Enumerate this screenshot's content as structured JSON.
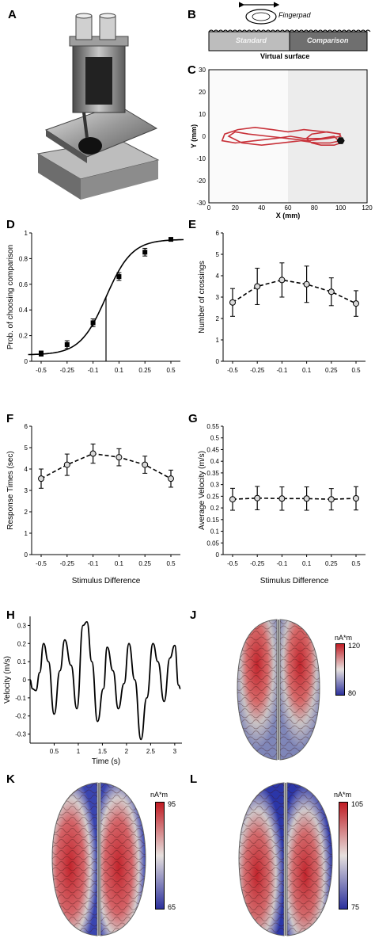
{
  "panels": {
    "A": {
      "label": "A"
    },
    "B": {
      "label": "B",
      "fingerpad": "Fingerpad",
      "standard": "Standard",
      "comparison": "Comparison",
      "surface": "Virtual surface"
    },
    "C": {
      "label": "C"
    },
    "D": {
      "label": "D"
    },
    "E": {
      "label": "E"
    },
    "F": {
      "label": "F"
    },
    "G": {
      "label": "G"
    },
    "H": {
      "label": "H"
    },
    "J": {
      "label": "J",
      "unit": "nA*m",
      "max": "120",
      "min": "80"
    },
    "K": {
      "label": "K",
      "unit": "nA*m",
      "max": "95",
      "min": "65"
    },
    "L": {
      "label": "L",
      "unit": "nA*m",
      "max": "105",
      "min": "75"
    }
  },
  "chart_data": [
    {
      "panel": "C",
      "type": "line",
      "xlabel": "X (mm)",
      "ylabel": "Y (mm)",
      "xlim": [
        0,
        120
      ],
      "ylim": [
        -30,
        30
      ],
      "xticks": [
        "0",
        "20",
        "40",
        "60",
        "80",
        "100",
        "120"
      ],
      "yticks": [
        "30",
        "20",
        "10",
        "0",
        "-10",
        "-20",
        "-30"
      ],
      "series": [
        {
          "color": "#c8323a",
          "x": [
            100,
            88,
            72,
            60,
            48,
            35,
            22,
            12,
            10,
            20,
            35,
            50,
            62,
            72,
            85,
            95,
            100,
            95,
            85,
            78,
            74,
            78,
            90,
            99,
            100,
            90,
            75,
            60,
            45,
            30,
            20,
            15,
            25,
            40,
            55,
            70,
            82,
            92,
            100
          ],
          "y": [
            1,
            2,
            3,
            2,
            3,
            4,
            3,
            1,
            -2,
            -3,
            -2,
            -1,
            0,
            -1,
            -1,
            0,
            -3,
            -4,
            -4,
            -3,
            -1,
            1,
            2,
            1,
            0,
            -1,
            -2,
            -1,
            0,
            1,
            2,
            0,
            -3,
            -4,
            -3,
            -2,
            -3,
            -3,
            -2
          ]
        }
      ]
    },
    {
      "panel": "D",
      "type": "line",
      "xlabel": "",
      "ylabel": "Prob. of choosing comparison",
      "ylim": [
        0,
        1
      ],
      "xlim": [
        -0.6,
        0.6
      ],
      "xticks": [
        "-0.5",
        "-0.25",
        "-0.1",
        "0.1",
        "0.25",
        "0.5"
      ],
      "yticks": [
        "0",
        "0.2",
        "0.4",
        "0.6",
        "0.8",
        "1"
      ],
      "categories": [
        "-0.5",
        "-0.25",
        "-0.1",
        "0.1",
        "0.25",
        "0.5"
      ],
      "values": [
        0.06,
        0.13,
        0.3,
        0.66,
        0.85,
        0.95
      ],
      "errors": [
        0.02,
        0.03,
        0.03,
        0.03,
        0.03,
        0.01
      ],
      "pse_line": 0.0
    },
    {
      "panel": "E",
      "type": "line",
      "xlabel": "",
      "ylabel": "Number of crossings",
      "ylim": [
        0,
        6
      ],
      "xticks": [
        "-0.5",
        "-0.25",
        "-0.1",
        "0.1",
        "0.25",
        "0.5"
      ],
      "yticks": [
        "0",
        "1",
        "2",
        "3",
        "4",
        "5",
        "6"
      ],
      "categories": [
        "-0.5",
        "-0.25",
        "-0.1",
        "0.1",
        "0.25",
        "0.5"
      ],
      "values": [
        2.75,
        3.5,
        3.8,
        3.6,
        3.25,
        2.7
      ],
      "errors": [
        0.65,
        0.85,
        0.8,
        0.85,
        0.65,
        0.6
      ]
    },
    {
      "panel": "F",
      "type": "line",
      "xlabel": "Stimulus Difference",
      "ylabel": "Response Times (sec)",
      "ylim": [
        0,
        6
      ],
      "xticks": [
        "-0.5",
        "-0.25",
        "-0.1",
        "0.1",
        "0.25",
        "0.5"
      ],
      "yticks": [
        "0",
        "1",
        "2",
        "3",
        "4",
        "5",
        "6"
      ],
      "categories": [
        "-0.5",
        "-0.25",
        "-0.1",
        "0.1",
        "0.25",
        "0.5"
      ],
      "values": [
        3.55,
        4.2,
        4.72,
        4.55,
        4.2,
        3.55
      ],
      "errors": [
        0.45,
        0.5,
        0.45,
        0.4,
        0.4,
        0.4
      ]
    },
    {
      "panel": "G",
      "type": "line",
      "xlabel": "Stimulus Difference",
      "ylabel": "Average Velocity (m/s)",
      "ylim": [
        0,
        0.55
      ],
      "xticks": [
        "-0.5",
        "-0.25",
        "-0.1",
        "0.1",
        "0.25",
        "0.5"
      ],
      "yticks": [
        "0",
        "0.05",
        "0.1",
        "0.15",
        "0.2",
        "0.25",
        "0.3",
        "0.35",
        "0.4",
        "0.45",
        "0.5",
        "0.55"
      ],
      "categories": [
        "-0.5",
        "-0.25",
        "-0.1",
        "0.1",
        "0.25",
        "0.5"
      ],
      "values": [
        0.237,
        0.242,
        0.24,
        0.24,
        0.237,
        0.241
      ],
      "errors": [
        0.047,
        0.05,
        0.05,
        0.05,
        0.046,
        0.05
      ]
    },
    {
      "panel": "H",
      "type": "line",
      "xlabel": "Time (s)",
      "ylabel": "Velocity (m/s)",
      "xlim": [
        0,
        3.15
      ],
      "ylim": [
        -0.35,
        0.35
      ],
      "xticks": [
        "0.5",
        "1",
        "1.5",
        "2",
        "2.5",
        "3"
      ],
      "yticks": [
        "0.3",
        "0.2",
        "0.1",
        "0",
        "-0.1",
        "-0.2",
        "-0.3"
      ],
      "series": [
        {
          "color": "#000000",
          "x": [
            0,
            0.05,
            0.12,
            0.2,
            0.28,
            0.38,
            0.5,
            0.62,
            0.72,
            0.85,
            0.97,
            1.1,
            1.18,
            1.28,
            1.4,
            1.52,
            1.6,
            1.72,
            1.83,
            1.95,
            2.05,
            2.17,
            2.3,
            2.42,
            2.55,
            2.65,
            2.78,
            2.9,
            3.0,
            3.08,
            3.12
          ],
          "y": [
            0,
            -0.05,
            -0.06,
            0.04,
            0.2,
            0.1,
            -0.19,
            0.05,
            0.22,
            0.08,
            -0.16,
            0.3,
            0.32,
            0.1,
            -0.23,
            -0.05,
            0.18,
            0.05,
            -0.16,
            -0.02,
            0.2,
            0.0,
            -0.33,
            -0.1,
            0.2,
            0.1,
            -0.12,
            0.12,
            0.19,
            -0.03,
            -0.05
          ]
        }
      ]
    }
  ]
}
